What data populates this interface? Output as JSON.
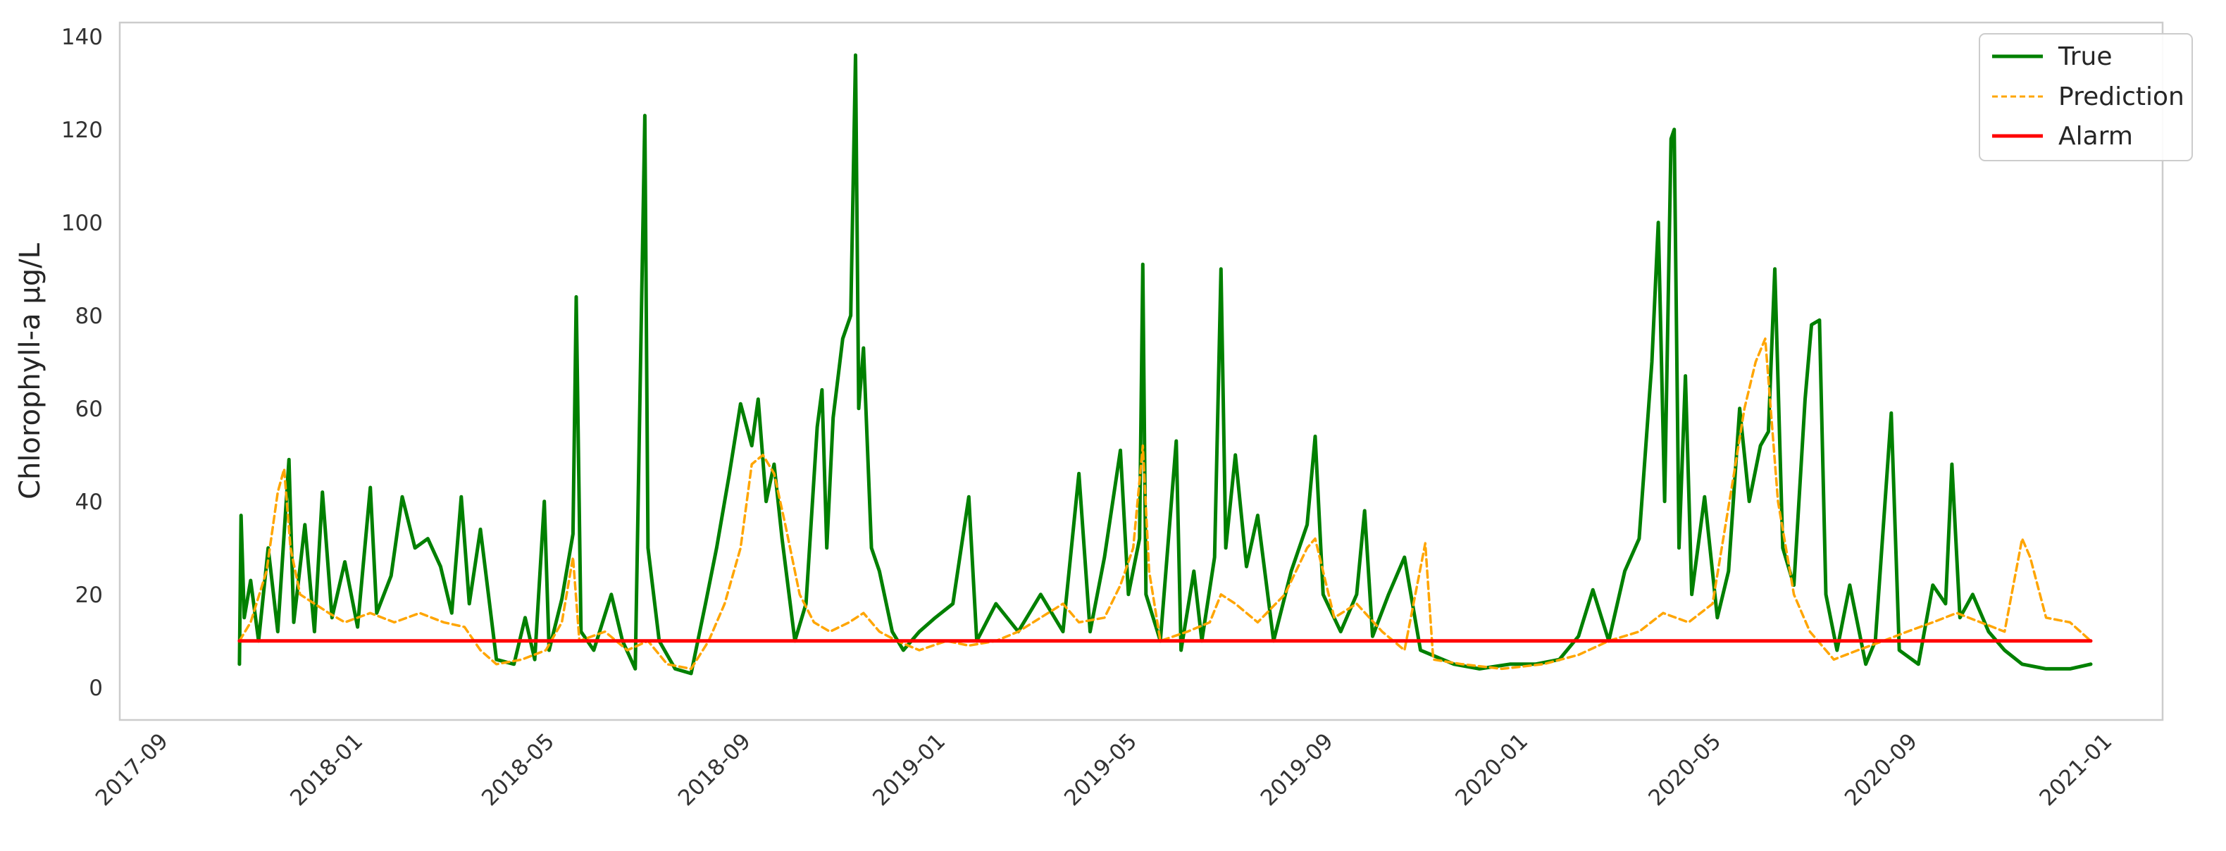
{
  "chart_data": {
    "type": "line",
    "title": "",
    "xlabel": "",
    "ylabel": "Chlorophyll-a µg/L",
    "ylim": [
      -7,
      143
    ],
    "xlim": [
      "2017-08-01",
      "2021-02-01"
    ],
    "y_ticks": [
      0,
      20,
      40,
      60,
      80,
      100,
      120,
      140
    ],
    "x_ticks": [
      "2017-09",
      "2018-01",
      "2018-05",
      "2018-09",
      "2019-01",
      "2019-05",
      "2019-09",
      "2020-01",
      "2020-05",
      "2020-09",
      "2021-01"
    ],
    "grid": false,
    "legend_position": "top-right",
    "series": [
      {
        "name": "True",
        "color": "#008000",
        "style": "solid",
        "points": [
          [
            "2017-10-15",
            5
          ],
          [
            "2017-10-16",
            37
          ],
          [
            "2017-10-18",
            15
          ],
          [
            "2017-10-22",
            23
          ],
          [
            "2017-10-27",
            10
          ],
          [
            "2017-11-02",
            30
          ],
          [
            "2017-11-08",
            12
          ],
          [
            "2017-11-15",
            49
          ],
          [
            "2017-11-18",
            14
          ],
          [
            "2017-11-25",
            35
          ],
          [
            "2017-12-01",
            12
          ],
          [
            "2017-12-06",
            42
          ],
          [
            "2017-12-12",
            15
          ],
          [
            "2017-12-20",
            27
          ],
          [
            "2017-12-28",
            13
          ],
          [
            "2018-01-05",
            43
          ],
          [
            "2018-01-09",
            16
          ],
          [
            "2018-01-18",
            24
          ],
          [
            "2018-01-25",
            41
          ],
          [
            "2018-02-02",
            30
          ],
          [
            "2018-02-10",
            32
          ],
          [
            "2018-02-18",
            26
          ],
          [
            "2018-02-25",
            16
          ],
          [
            "2018-03-03",
            41
          ],
          [
            "2018-03-08",
            18
          ],
          [
            "2018-03-15",
            34
          ],
          [
            "2018-03-25",
            6
          ],
          [
            "2018-04-05",
            5
          ],
          [
            "2018-04-12",
            15
          ],
          [
            "2018-04-18",
            6
          ],
          [
            "2018-04-24",
            40
          ],
          [
            "2018-04-27",
            8
          ],
          [
            "2018-05-05",
            19
          ],
          [
            "2018-05-12",
            33
          ],
          [
            "2018-05-14",
            84
          ],
          [
            "2018-05-17",
            12
          ],
          [
            "2018-05-25",
            8
          ],
          [
            "2018-06-05",
            20
          ],
          [
            "2018-06-12",
            10
          ],
          [
            "2018-06-20",
            4
          ],
          [
            "2018-06-26",
            123
          ],
          [
            "2018-06-28",
            30
          ],
          [
            "2018-07-05",
            10
          ],
          [
            "2018-07-15",
            4
          ],
          [
            "2018-07-25",
            3
          ],
          [
            "2018-08-03",
            18
          ],
          [
            "2018-08-10",
            30
          ],
          [
            "2018-08-18",
            46
          ],
          [
            "2018-08-25",
            61
          ],
          [
            "2018-09-01",
            52
          ],
          [
            "2018-09-05",
            62
          ],
          [
            "2018-09-10",
            40
          ],
          [
            "2018-09-15",
            48
          ],
          [
            "2018-09-20",
            32
          ],
          [
            "2018-09-28",
            10
          ],
          [
            "2018-10-05",
            18
          ],
          [
            "2018-10-12",
            56
          ],
          [
            "2018-10-15",
            64
          ],
          [
            "2018-10-18",
            30
          ],
          [
            "2018-10-22",
            58
          ],
          [
            "2018-10-28",
            75
          ],
          [
            "2018-11-02",
            80
          ],
          [
            "2018-11-05",
            136
          ],
          [
            "2018-11-07",
            60
          ],
          [
            "2018-11-10",
            73
          ],
          [
            "2018-11-15",
            30
          ],
          [
            "2018-11-20",
            25
          ],
          [
            "2018-11-28",
            12
          ],
          [
            "2018-12-05",
            8
          ],
          [
            "2018-12-15",
            12
          ],
          [
            "2018-12-25",
            15
          ],
          [
            "2019-01-05",
            18
          ],
          [
            "2019-01-15",
            41
          ],
          [
            "2019-01-20",
            10
          ],
          [
            "2019-02-01",
            18
          ],
          [
            "2019-02-15",
            12
          ],
          [
            "2019-03-01",
            20
          ],
          [
            "2019-03-15",
            12
          ],
          [
            "2019-03-25",
            46
          ],
          [
            "2019-04-01",
            12
          ],
          [
            "2019-04-10",
            28
          ],
          [
            "2019-04-20",
            51
          ],
          [
            "2019-04-25",
            20
          ],
          [
            "2019-05-02",
            32
          ],
          [
            "2019-05-04",
            91
          ],
          [
            "2019-05-06",
            20
          ],
          [
            "2019-05-15",
            10
          ],
          [
            "2019-05-25",
            53
          ],
          [
            "2019-05-28",
            8
          ],
          [
            "2019-06-05",
            25
          ],
          [
            "2019-06-10",
            10
          ],
          [
            "2019-06-18",
            28
          ],
          [
            "2019-06-22",
            90
          ],
          [
            "2019-06-25",
            30
          ],
          [
            "2019-07-01",
            50
          ],
          [
            "2019-07-08",
            26
          ],
          [
            "2019-07-15",
            37
          ],
          [
            "2019-07-25",
            10
          ],
          [
            "2019-08-05",
            25
          ],
          [
            "2019-08-15",
            35
          ],
          [
            "2019-08-20",
            54
          ],
          [
            "2019-08-25",
            20
          ],
          [
            "2019-09-05",
            12
          ],
          [
            "2019-09-15",
            20
          ],
          [
            "2019-09-20",
            38
          ],
          [
            "2019-09-25",
            11
          ],
          [
            "2019-10-05",
            20
          ],
          [
            "2019-10-15",
            28
          ],
          [
            "2019-10-25",
            8
          ],
          [
            "2019-11-15",
            5
          ],
          [
            "2019-12-01",
            4
          ],
          [
            "2019-12-20",
            5
          ],
          [
            "2020-01-05",
            5
          ],
          [
            "2020-01-20",
            6
          ],
          [
            "2020-02-01",
            11
          ],
          [
            "2020-02-10",
            21
          ],
          [
            "2020-02-20",
            10
          ],
          [
            "2020-03-01",
            25
          ],
          [
            "2020-03-10",
            32
          ],
          [
            "2020-03-18",
            70
          ],
          [
            "2020-03-22",
            100
          ],
          [
            "2020-03-26",
            40
          ],
          [
            "2020-03-30",
            118
          ],
          [
            "2020-04-01",
            120
          ],
          [
            "2020-04-04",
            30
          ],
          [
            "2020-04-08",
            67
          ],
          [
            "2020-04-12",
            20
          ],
          [
            "2020-04-20",
            41
          ],
          [
            "2020-04-28",
            15
          ],
          [
            "2020-05-05",
            25
          ],
          [
            "2020-05-12",
            60
          ],
          [
            "2020-05-18",
            40
          ],
          [
            "2020-05-25",
            52
          ],
          [
            "2020-05-30",
            55
          ],
          [
            "2020-06-03",
            90
          ],
          [
            "2020-06-08",
            30
          ],
          [
            "2020-06-15",
            22
          ],
          [
            "2020-06-22",
            62
          ],
          [
            "2020-06-26",
            78
          ],
          [
            "2020-07-01",
            79
          ],
          [
            "2020-07-05",
            20
          ],
          [
            "2020-07-12",
            8
          ],
          [
            "2020-07-20",
            22
          ],
          [
            "2020-07-30",
            5
          ],
          [
            "2020-08-05",
            10
          ],
          [
            "2020-08-15",
            59
          ],
          [
            "2020-08-20",
            8
          ],
          [
            "2020-09-01",
            5
          ],
          [
            "2020-09-10",
            22
          ],
          [
            "2020-09-18",
            18
          ],
          [
            "2020-09-22",
            48
          ],
          [
            "2020-09-27",
            15
          ],
          [
            "2020-10-05",
            20
          ],
          [
            "2020-10-15",
            12
          ],
          [
            "2020-10-25",
            8
          ],
          [
            "2020-11-05",
            5
          ],
          [
            "2020-11-20",
            4
          ],
          [
            "2020-12-05",
            4
          ],
          [
            "2020-12-18",
            5
          ]
        ]
      },
      {
        "name": "Prediction",
        "color": "#ffa500",
        "style": "dashed",
        "points": [
          [
            "2017-10-15",
            10
          ],
          [
            "2017-10-22",
            14
          ],
          [
            "2017-11-01",
            25
          ],
          [
            "2017-11-08",
            42
          ],
          [
            "2017-11-12",
            47
          ],
          [
            "2017-11-16",
            30
          ],
          [
            "2017-11-22",
            20
          ],
          [
            "2017-12-01",
            18
          ],
          [
            "2017-12-10",
            16
          ],
          [
            "2017-12-20",
            14
          ],
          [
            "2018-01-05",
            16
          ],
          [
            "2018-01-20",
            14
          ],
          [
            "2018-02-05",
            16
          ],
          [
            "2018-02-20",
            14
          ],
          [
            "2018-03-05",
            13
          ],
          [
            "2018-03-15",
            8
          ],
          [
            "2018-03-25",
            5
          ],
          [
            "2018-04-10",
            6
          ],
          [
            "2018-04-25",
            8
          ],
          [
            "2018-05-05",
            14
          ],
          [
            "2018-05-12",
            28
          ],
          [
            "2018-05-16",
            10
          ],
          [
            "2018-06-01",
            12
          ],
          [
            "2018-06-15",
            8
          ],
          [
            "2018-06-28",
            10
          ],
          [
            "2018-07-10",
            5
          ],
          [
            "2018-07-25",
            4
          ],
          [
            "2018-08-05",
            10
          ],
          [
            "2018-08-15",
            18
          ],
          [
            "2018-08-25",
            30
          ],
          [
            "2018-09-01",
            48
          ],
          [
            "2018-09-08",
            50
          ],
          [
            "2018-09-15",
            46
          ],
          [
            "2018-09-22",
            35
          ],
          [
            "2018-10-01",
            20
          ],
          [
            "2018-10-10",
            14
          ],
          [
            "2018-10-20",
            12
          ],
          [
            "2018-11-01",
            14
          ],
          [
            "2018-11-10",
            16
          ],
          [
            "2018-11-20",
            12
          ],
          [
            "2018-12-01",
            10
          ],
          [
            "2018-12-15",
            8
          ],
          [
            "2019-01-01",
            10
          ],
          [
            "2019-01-15",
            9
          ],
          [
            "2019-02-01",
            10
          ],
          [
            "2019-02-15",
            12
          ],
          [
            "2019-03-01",
            15
          ],
          [
            "2019-03-15",
            18
          ],
          [
            "2019-03-25",
            14
          ],
          [
            "2019-04-10",
            15
          ],
          [
            "2019-04-20",
            22
          ],
          [
            "2019-04-28",
            30
          ],
          [
            "2019-05-04",
            52
          ],
          [
            "2019-05-08",
            25
          ],
          [
            "2019-05-15",
            10
          ],
          [
            "2019-06-01",
            12
          ],
          [
            "2019-06-15",
            14
          ],
          [
            "2019-06-22",
            20
          ],
          [
            "2019-07-01",
            18
          ],
          [
            "2019-07-15",
            14
          ],
          [
            "2019-08-01",
            20
          ],
          [
            "2019-08-15",
            30
          ],
          [
            "2019-08-20",
            32
          ],
          [
            "2019-09-01",
            15
          ],
          [
            "2019-09-15",
            18
          ],
          [
            "2019-10-01",
            12
          ],
          [
            "2019-10-15",
            8
          ],
          [
            "2019-10-28",
            31
          ],
          [
            "2019-11-02",
            6
          ],
          [
            "2019-11-20",
            5
          ],
          [
            "2019-12-15",
            4
          ],
          [
            "2020-01-10",
            5
          ],
          [
            "2020-02-01",
            7
          ],
          [
            "2020-02-20",
            10
          ],
          [
            "2020-03-10",
            12
          ],
          [
            "2020-03-25",
            16
          ],
          [
            "2020-04-10",
            14
          ],
          [
            "2020-04-25",
            18
          ],
          [
            "2020-05-08",
            45
          ],
          [
            "2020-05-15",
            60
          ],
          [
            "2020-05-22",
            70
          ],
          [
            "2020-05-28",
            75
          ],
          [
            "2020-06-05",
            40
          ],
          [
            "2020-06-15",
            20
          ],
          [
            "2020-06-25",
            12
          ],
          [
            "2020-07-10",
            6
          ],
          [
            "2020-07-25",
            8
          ],
          [
            "2020-08-10",
            10
          ],
          [
            "2020-08-25",
            12
          ],
          [
            "2020-09-10",
            14
          ],
          [
            "2020-09-25",
            16
          ],
          [
            "2020-10-10",
            14
          ],
          [
            "2020-10-25",
            12
          ],
          [
            "2020-11-05",
            32
          ],
          [
            "2020-11-10",
            28
          ],
          [
            "2020-11-20",
            15
          ],
          [
            "2020-12-05",
            14
          ],
          [
            "2020-12-18",
            10
          ]
        ]
      },
      {
        "name": "Alarm",
        "color": "#ff0000",
        "style": "solid",
        "points": [
          [
            "2017-10-15",
            10
          ],
          [
            "2020-12-18",
            10
          ]
        ]
      }
    ]
  }
}
